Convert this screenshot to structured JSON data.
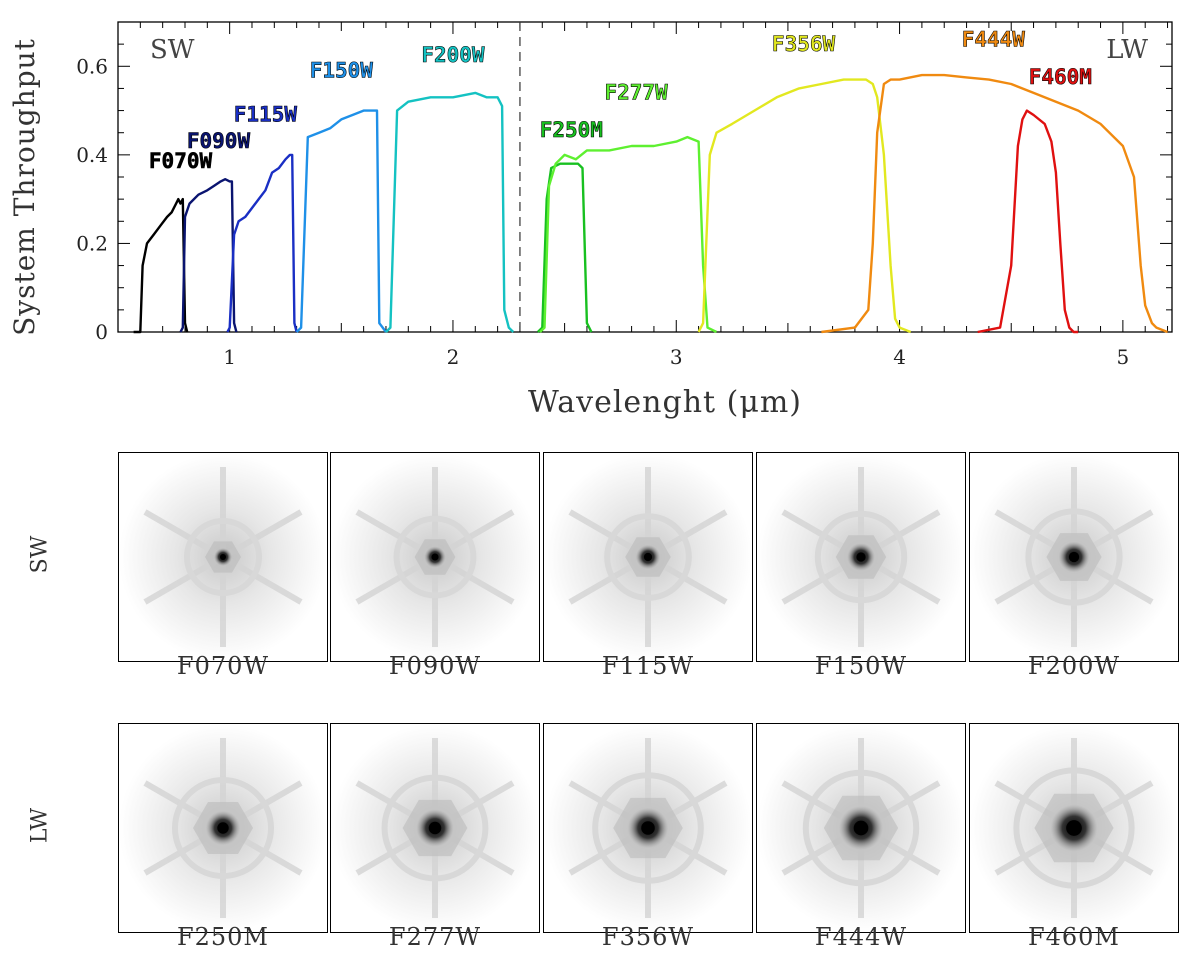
{
  "chart_data": {
    "type": "line",
    "xlabel": "Wavelenght (μm)",
    "ylabel": "System Throughput",
    "xlim": [
      0.5,
      5.22
    ],
    "ylim": [
      0,
      0.7
    ],
    "xticks": [
      1,
      2,
      3,
      4,
      5
    ],
    "yticks": [
      0,
      0.2,
      0.4,
      0.6
    ],
    "ytick_labels": [
      "0",
      "0.2",
      "0.4",
      "0.6"
    ],
    "region_labels": {
      "left": "SW",
      "right": "LW"
    },
    "divider_x": 2.3,
    "series": [
      {
        "name": "F070W",
        "color": "#000000",
        "label_at": [
          0.78,
          0.37
        ],
        "x": [
          0.57,
          0.6,
          0.61,
          0.63,
          0.66,
          0.69,
          0.72,
          0.74,
          0.76,
          0.77,
          0.78,
          0.79,
          0.8,
          0.81
        ],
        "y": [
          0,
          0,
          0.15,
          0.2,
          0.22,
          0.24,
          0.26,
          0.27,
          0.29,
          0.3,
          0.29,
          0.3,
          0.02,
          0
        ]
      },
      {
        "name": "F090W",
        "color": "#0a1470",
        "label_at": [
          0.95,
          0.415
        ],
        "x": [
          0.78,
          0.79,
          0.8,
          0.82,
          0.86,
          0.9,
          0.93,
          0.96,
          0.98,
          1.0,
          1.01,
          1.02,
          1.03
        ],
        "y": [
          0,
          0.01,
          0.26,
          0.29,
          0.31,
          0.32,
          0.33,
          0.34,
          0.345,
          0.34,
          0.34,
          0.02,
          0
        ]
      },
      {
        "name": "F115W",
        "color": "#1a2fc4",
        "label_at": [
          1.16,
          0.475
        ],
        "x": [
          0.99,
          1.0,
          1.02,
          1.04,
          1.07,
          1.1,
          1.13,
          1.16,
          1.19,
          1.22,
          1.25,
          1.27,
          1.28,
          1.29,
          1.3
        ],
        "y": [
          0,
          0.01,
          0.22,
          0.25,
          0.26,
          0.28,
          0.3,
          0.32,
          0.36,
          0.37,
          0.39,
          0.4,
          0.4,
          0.02,
          0
        ]
      },
      {
        "name": "F150W",
        "color": "#1e90e8",
        "label_at": [
          1.5,
          0.575
        ],
        "x": [
          1.3,
          1.32,
          1.35,
          1.4,
          1.45,
          1.5,
          1.55,
          1.6,
          1.63,
          1.65,
          1.66,
          1.67,
          1.7
        ],
        "y": [
          0,
          0.01,
          0.44,
          0.45,
          0.46,
          0.48,
          0.49,
          0.5,
          0.5,
          0.5,
          0.5,
          0.02,
          0
        ]
      },
      {
        "name": "F200W",
        "color": "#14c2c2",
        "label_at": [
          2.0,
          0.61
        ],
        "x": [
          1.7,
          1.72,
          1.75,
          1.8,
          1.9,
          2.0,
          2.1,
          2.15,
          2.2,
          2.22,
          2.23,
          2.25,
          2.27
        ],
        "y": [
          0,
          0.01,
          0.5,
          0.52,
          0.53,
          0.53,
          0.54,
          0.53,
          0.53,
          0.51,
          0.05,
          0.01,
          0
        ]
      },
      {
        "name": "F250M",
        "color": "#18c020",
        "label_at": [
          2.53,
          0.44
        ],
        "x": [
          2.38,
          2.4,
          2.42,
          2.44,
          2.48,
          2.52,
          2.56,
          2.58,
          2.6,
          2.62
        ],
        "y": [
          0,
          0.01,
          0.3,
          0.37,
          0.38,
          0.38,
          0.38,
          0.37,
          0.02,
          0
        ]
      },
      {
        "name": "F277W",
        "color": "#5ef030",
        "label_at": [
          2.82,
          0.525
        ],
        "x": [
          2.39,
          2.41,
          2.43,
          2.46,
          2.5,
          2.55,
          2.6,
          2.7,
          2.8,
          2.9,
          3.0,
          3.05,
          3.1,
          3.12,
          3.14,
          3.18
        ],
        "y": [
          0,
          0.01,
          0.33,
          0.38,
          0.4,
          0.39,
          0.41,
          0.41,
          0.42,
          0.42,
          0.43,
          0.44,
          0.43,
          0.15,
          0.01,
          0
        ]
      },
      {
        "name": "F356W",
        "color": "#e2e820",
        "label_at": [
          3.57,
          0.635
        ],
        "x": [
          3.1,
          3.12,
          3.15,
          3.18,
          3.25,
          3.35,
          3.45,
          3.55,
          3.65,
          3.75,
          3.8,
          3.85,
          3.88,
          3.9,
          3.93,
          3.96,
          3.98,
          4.0,
          4.05
        ],
        "y": [
          0,
          0.02,
          0.4,
          0.45,
          0.47,
          0.5,
          0.53,
          0.55,
          0.56,
          0.57,
          0.57,
          0.57,
          0.56,
          0.53,
          0.4,
          0.15,
          0.03,
          0.01,
          0
        ]
      },
      {
        "name": "F444W",
        "color": "#f08a10",
        "label_at": [
          4.42,
          0.645
        ],
        "x": [
          3.65,
          3.8,
          3.86,
          3.88,
          3.9,
          3.93,
          3.96,
          4.0,
          4.1,
          4.2,
          4.3,
          4.4,
          4.5,
          4.6,
          4.7,
          4.8,
          4.9,
          5.0,
          5.05,
          5.08,
          5.1,
          5.13,
          5.15,
          5.2
        ],
        "y": [
          0,
          0.01,
          0.05,
          0.2,
          0.45,
          0.56,
          0.57,
          0.57,
          0.58,
          0.58,
          0.575,
          0.57,
          0.56,
          0.54,
          0.52,
          0.5,
          0.47,
          0.42,
          0.35,
          0.15,
          0.06,
          0.02,
          0.01,
          0
        ]
      },
      {
        "name": "F460M",
        "color": "#e01010",
        "label_at": [
          4.72,
          0.56
        ],
        "x": [
          4.35,
          4.45,
          4.5,
          4.53,
          4.55,
          4.57,
          4.6,
          4.65,
          4.68,
          4.7,
          4.72,
          4.74,
          4.76,
          4.78,
          4.8
        ],
        "y": [
          0,
          0.01,
          0.15,
          0.42,
          0.48,
          0.5,
          0.49,
          0.47,
          0.43,
          0.36,
          0.2,
          0.05,
          0.01,
          0,
          0
        ]
      }
    ]
  },
  "psf_grid": {
    "row_labels": [
      "SW",
      "LW"
    ],
    "rows": [
      [
        "F070W",
        "F090W",
        "F115W",
        "F150W",
        "F200W"
      ],
      [
        "F250M",
        "F277W",
        "F356W",
        "F444W",
        "F460M"
      ]
    ]
  }
}
